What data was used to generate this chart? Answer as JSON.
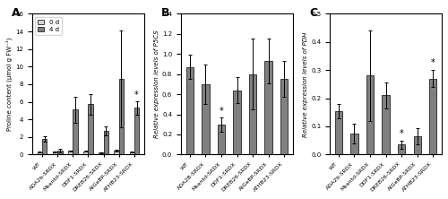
{
  "panel_A": {
    "label": "A",
    "categories": [
      "WT",
      "ADA2b-SRDX",
      "Msantd-SRDX",
      "DDF1-SRDX",
      "DREB26-SRDX",
      "AtGeBP-SRDX",
      "ATHB23-SRDX"
    ],
    "values_0d": [
      0.25,
      0.3,
      0.4,
      0.35,
      0.2,
      0.45,
      0.25
    ],
    "values_4d": [
      1.8,
      0.4,
      5.1,
      5.7,
      2.7,
      8.6,
      5.3
    ],
    "errors_0d": [
      0.05,
      0.05,
      0.08,
      0.06,
      0.05,
      0.07,
      0.05
    ],
    "errors_4d": [
      0.3,
      0.2,
      1.5,
      1.2,
      0.5,
      5.5,
      0.8
    ],
    "ylabel": "Proline content (μmol g FW⁻¹)",
    "ylim": [
      0,
      16
    ],
    "yticks": [
      0,
      2,
      4,
      6,
      8,
      10,
      12,
      14,
      16
    ],
    "significant_4d": [
      false,
      false,
      false,
      false,
      false,
      false,
      true
    ]
  },
  "panel_B": {
    "label": "B",
    "categories": [
      "WT",
      "ADA2B-SRDX",
      "Msantd-SRDX",
      "DDF1-SRDX",
      "DREB26-SRDX",
      "AtGeBP-SRDX",
      "ATHB23-SRDX"
    ],
    "values": [
      0.87,
      0.7,
      0.3,
      0.64,
      0.8,
      0.93,
      0.75
    ],
    "errors": [
      0.12,
      0.2,
      0.07,
      0.13,
      0.35,
      0.22,
      0.18
    ],
    "ylabel": "Relative expression levels of P5CS",
    "ylim": [
      0,
      1.4
    ],
    "yticks": [
      0,
      0.2,
      0.4,
      0.6,
      0.8,
      1.0,
      1.2,
      1.4
    ],
    "significant": [
      false,
      false,
      true,
      false,
      false,
      false,
      false
    ]
  },
  "panel_C": {
    "label": "C",
    "categories": [
      "WT",
      "ADA2b-SRDX",
      "Msantd-SRDX",
      "DDF1-SRDX",
      "DREB26-SRDX",
      "AtGeBP-SRDX",
      "ATHB23-SRDX"
    ],
    "values": [
      0.155,
      0.075,
      0.28,
      0.21,
      0.035,
      0.065,
      0.27
    ],
    "errors": [
      0.025,
      0.035,
      0.16,
      0.045,
      0.015,
      0.03,
      0.03
    ],
    "ylabel": "Relative expression levels of PDH",
    "ylim": [
      0,
      0.5
    ],
    "yticks": [
      0,
      0.1,
      0.2,
      0.3,
      0.4,
      0.5
    ],
    "significant": [
      false,
      false,
      false,
      false,
      true,
      false,
      true
    ]
  },
  "color_0d": "#d3d3d3",
  "color_4d": "#808080",
  "bar_width": 0.35,
  "figure_width": 5.0,
  "figure_height": 2.22,
  "dpi": 100
}
